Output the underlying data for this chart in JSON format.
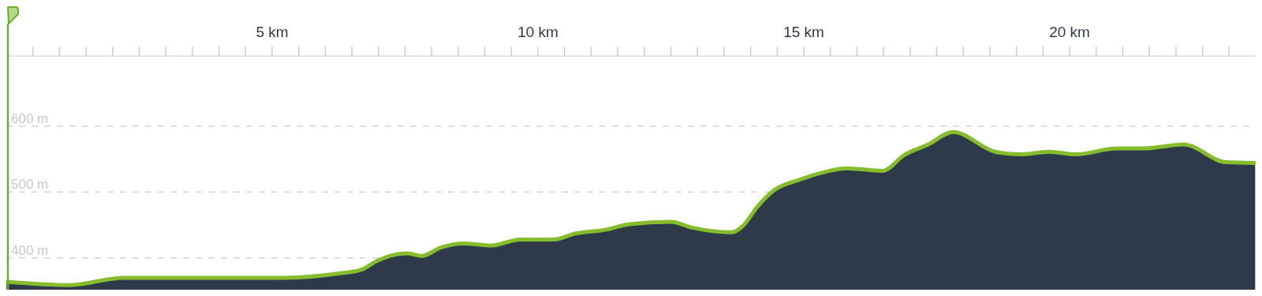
{
  "chart_data": {
    "type": "area",
    "x": [
      0,
      1.2,
      2.2,
      3.67,
      5.24,
      6.3,
      6.67,
      6.98,
      7.55,
      7.81,
      8.18,
      8.6,
      9.13,
      9.66,
      10.29,
      10.7,
      11.29,
      11.7,
      12.5,
      12.9,
      13.64,
      13.86,
      14.11,
      14.43,
      14.9,
      15.43,
      15.8,
      16.48,
      16.89,
      17.34,
      17.81,
      18.6,
      19.06,
      19.62,
      20.12,
      20.88,
      21.4,
      22.14,
      22.95,
      23.49
    ],
    "series": [
      {
        "color": "#2e3a4a",
        "values": [
          364,
          359,
          370,
          370,
          370,
          377,
          382,
          396,
          407,
          403,
          416,
          422,
          419,
          428,
          428,
          437,
          443,
          451,
          455,
          446,
          439,
          449,
          476,
          502,
          518,
          531,
          536,
          532,
          556,
          572,
          591,
          561,
          557,
          561,
          557,
          566,
          566,
          572,
          545,
          544
        ]
      }
    ],
    "xlim": [
      0,
      23.5
    ],
    "ylim": [
      352,
      706
    ],
    "xticks": [
      {
        "value": 0.5,
        "label": null
      },
      {
        "value": 1,
        "label": null
      },
      {
        "value": 1.5,
        "label": null
      },
      {
        "value": 2,
        "label": null
      },
      {
        "value": 2.5,
        "label": null
      },
      {
        "value": 3,
        "label": null
      },
      {
        "value": 3.5,
        "label": null
      },
      {
        "value": 4,
        "label": null
      },
      {
        "value": 4.5,
        "label": null
      },
      {
        "value": 5,
        "label": "5 km"
      },
      {
        "value": 5.5,
        "label": null
      },
      {
        "value": 6,
        "label": null
      },
      {
        "value": 6.5,
        "label": null
      },
      {
        "value": 7,
        "label": null
      },
      {
        "value": 7.5,
        "label": null
      },
      {
        "value": 8,
        "label": null
      },
      {
        "value": 8.5,
        "label": null
      },
      {
        "value": 9,
        "label": null
      },
      {
        "value": 9.5,
        "label": null
      },
      {
        "value": 10,
        "label": "10 km"
      },
      {
        "value": 10.5,
        "label": null
      },
      {
        "value": 11,
        "label": null
      },
      {
        "value": 11.5,
        "label": null
      },
      {
        "value": 12,
        "label": null
      },
      {
        "value": 12.5,
        "label": null
      },
      {
        "value": 13,
        "label": null
      },
      {
        "value": 13.5,
        "label": null
      },
      {
        "value": 14,
        "label": null
      },
      {
        "value": 14.5,
        "label": null
      },
      {
        "value": 15,
        "label": "15 km"
      },
      {
        "value": 15.5,
        "label": null
      },
      {
        "value": 16,
        "label": null
      },
      {
        "value": 16.5,
        "label": null
      },
      {
        "value": 17,
        "label": null
      },
      {
        "value": 17.5,
        "label": null
      },
      {
        "value": 18,
        "label": null
      },
      {
        "value": 18.5,
        "label": null
      },
      {
        "value": 19,
        "label": null
      },
      {
        "value": 19.5,
        "label": null
      },
      {
        "value": 20,
        "label": "20 km"
      },
      {
        "value": 20.5,
        "label": null
      },
      {
        "value": 21,
        "label": null
      },
      {
        "value": 21.5,
        "label": null
      },
      {
        "value": 22,
        "label": null
      },
      {
        "value": 22.5,
        "label": null
      },
      {
        "value": 23,
        "label": null
      }
    ],
    "yticks": [
      {
        "value": 400,
        "label": "400 m"
      },
      {
        "value": 500,
        "label": "500 m"
      },
      {
        "value": 600,
        "label": "600 m"
      }
    ],
    "grid": "y"
  }
}
